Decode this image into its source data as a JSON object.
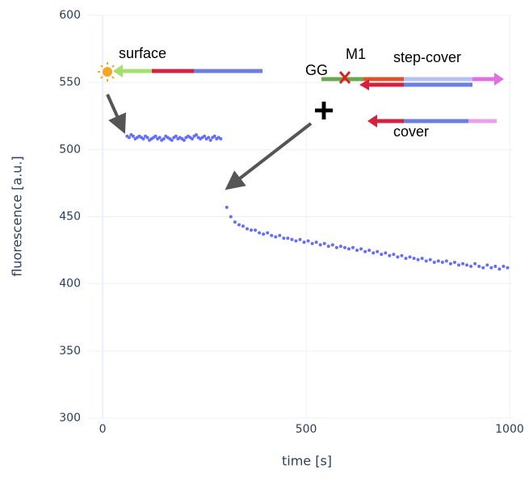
{
  "chart_data": {
    "type": "scatter",
    "xlabel": "time [s]",
    "ylabel": "fluorescence [a.u.]",
    "xlim": [
      -38,
      1008
    ],
    "ylim": [
      300,
      600
    ],
    "xticks": [
      0,
      500,
      1000
    ],
    "yticks": [
      300,
      350,
      400,
      450,
      500,
      550,
      600
    ],
    "grid": true,
    "annotations": {
      "surface": "surface",
      "gg": "GG",
      "m1": "M1",
      "step_cover": "step-cover",
      "cover": "cover",
      "plus": "+"
    },
    "series": [
      {
        "color": "#636efa",
        "x": [
          60,
          65,
          70,
          75,
          80,
          85,
          90,
          95,
          100,
          105,
          110,
          115,
          120,
          125,
          130,
          135,
          140,
          145,
          150,
          155,
          160,
          165,
          170,
          175,
          180,
          185,
          190,
          195,
          200,
          205,
          210,
          215,
          220,
          225,
          230,
          235,
          240,
          245,
          250,
          255,
          260,
          265,
          270,
          275,
          280,
          285,
          290
        ],
        "values": [
          510,
          509,
          511,
          510,
          508,
          509,
          510,
          509,
          508,
          510,
          509,
          507,
          508,
          509,
          510,
          508,
          509,
          507,
          508,
          510,
          509,
          508,
          507,
          509,
          510,
          508,
          509,
          508,
          507,
          509,
          510,
          509,
          508,
          510,
          511,
          509,
          508,
          509,
          510,
          508,
          509,
          507,
          509,
          510,
          508,
          509,
          508
        ]
      },
      {
        "color": "#636efa",
        "x": [
          305,
          315,
          325,
          335,
          345,
          355,
          365,
          375,
          385,
          395,
          405,
          415,
          425,
          435,
          445,
          455,
          465,
          475,
          485,
          495,
          505,
          515,
          525,
          535,
          545,
          555,
          565,
          575,
          585,
          595,
          605,
          615,
          625,
          635,
          645,
          655,
          665,
          675,
          685,
          695,
          705,
          715,
          725,
          735,
          745,
          755,
          765,
          775,
          785,
          795,
          805,
          815,
          825,
          835,
          845,
          855,
          865,
          875,
          885,
          895,
          905,
          915,
          925,
          935,
          945,
          955,
          965,
          975,
          985,
          995
        ],
        "values": [
          457,
          450,
          446,
          444,
          443,
          441,
          440,
          440,
          438,
          437,
          438,
          436,
          435,
          436,
          434,
          434,
          433,
          432,
          433,
          431,
          432,
          430,
          431,
          429,
          430,
          428,
          429,
          427,
          428,
          427,
          426,
          427,
          425,
          426,
          424,
          425,
          423,
          424,
          422,
          423,
          421,
          422,
          420,
          421,
          419,
          420,
          419,
          418,
          419,
          417,
          418,
          416,
          417,
          416,
          417,
          415,
          416,
          414,
          415,
          414,
          413,
          415,
          413,
          412,
          414,
          412,
          413,
          411,
          413,
          412
        ]
      }
    ]
  }
}
